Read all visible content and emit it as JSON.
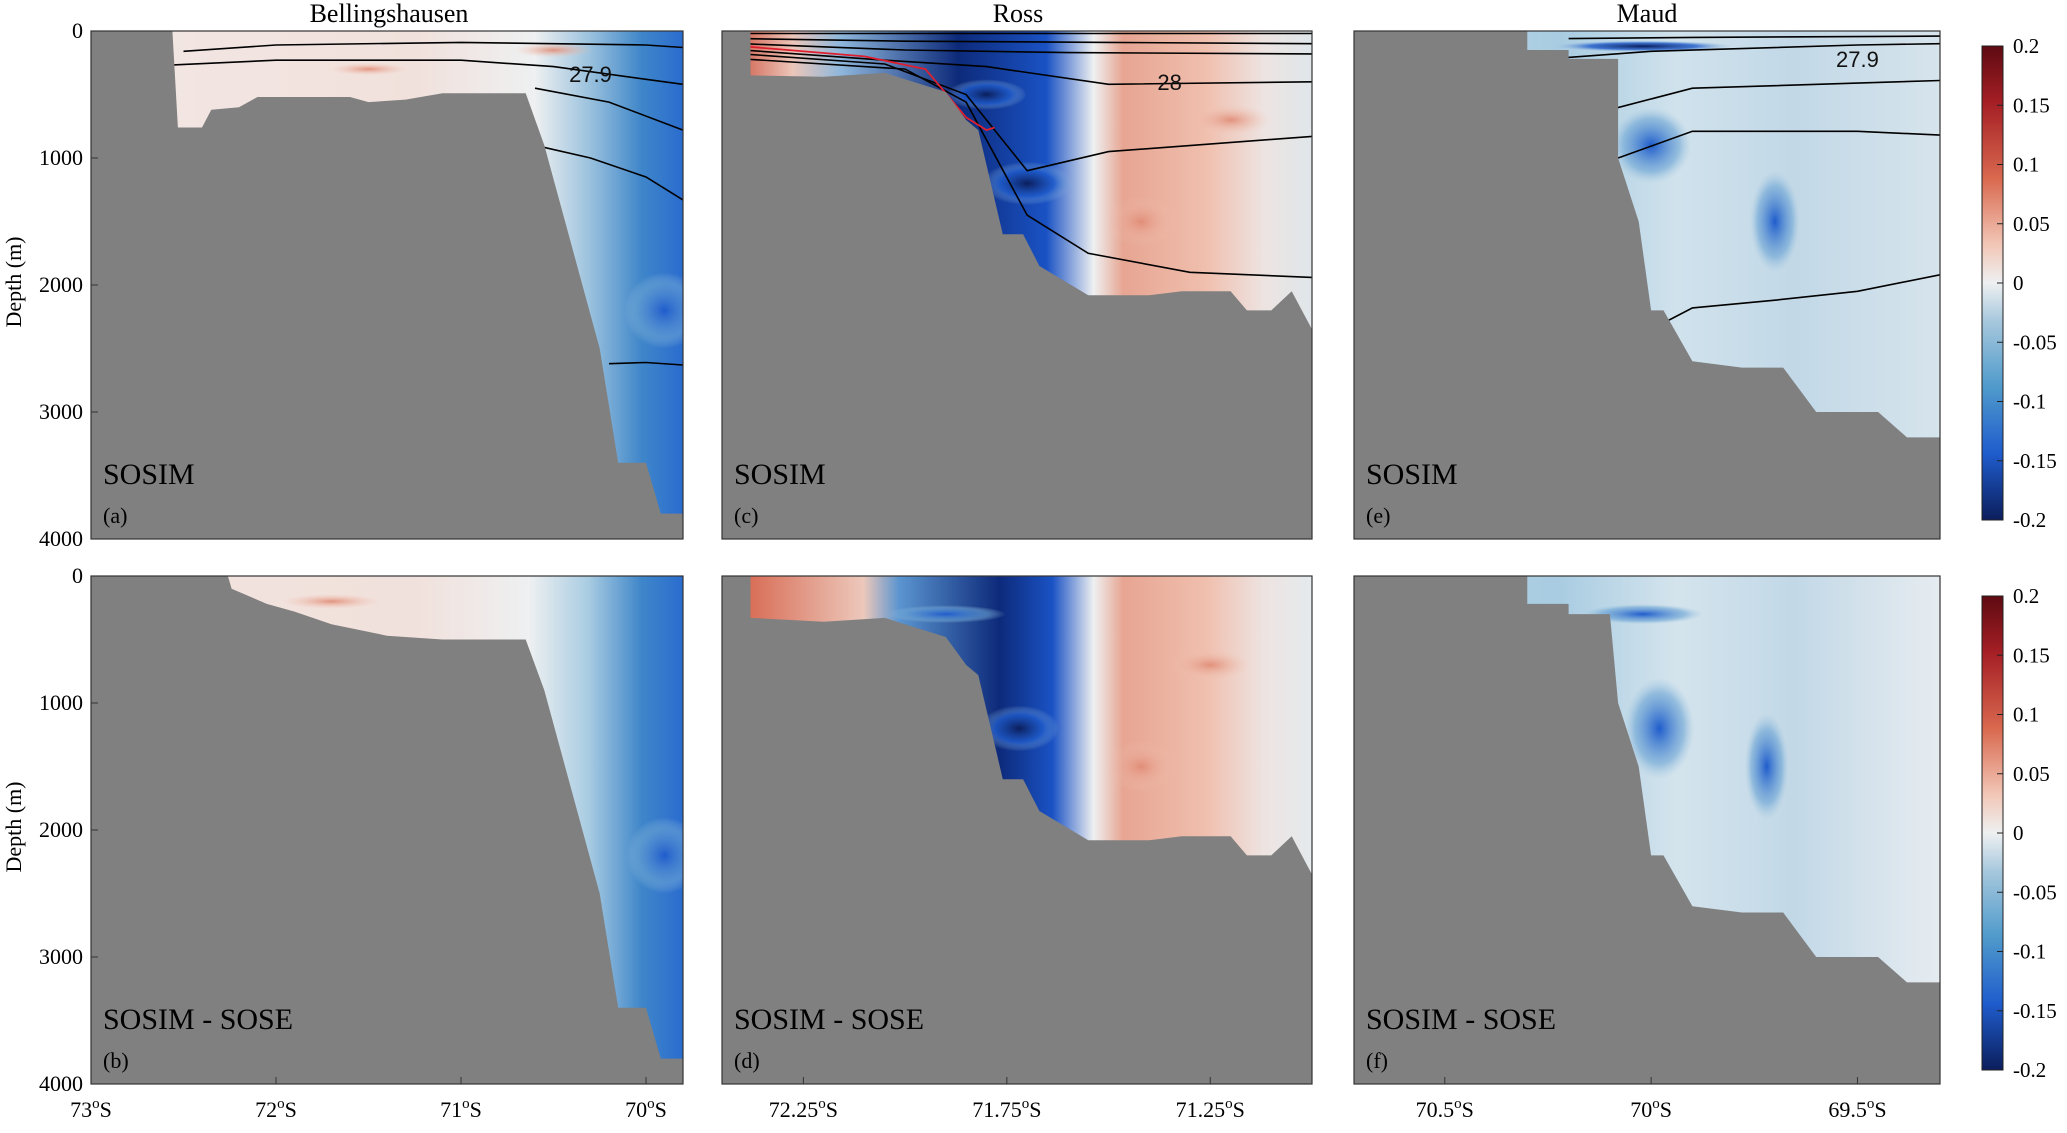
{
  "figure": {
    "columns": [
      "Bellingshausen",
      "Ross",
      "Maud"
    ],
    "y_axis_label": "Depth (m)",
    "y_ticks": [
      "0",
      "1000",
      "2000",
      "3000",
      "4000"
    ],
    "colorbar_ticks": [
      "0.2",
      "0.15",
      "0.1",
      "0.05",
      "0",
      "-0.05",
      "-0.1",
      "-0.15",
      "-0.2"
    ],
    "colors": {
      "land": "#808080",
      "neg_strong": "#0b1e5c",
      "neg_mid": "#1f5ccc",
      "neg_light": "#9dc3de",
      "neutral": "#eef0f1",
      "pos_light": "#f2c7b7",
      "pos_mid": "#d9694f",
      "pos_strong": "#7a0c12",
      "isopycnal": "#000000",
      "red_contour": "#dd1f2f"
    }
  },
  "chart_data": [
    {
      "id": "a",
      "type": "heatmap",
      "section": "Bellingshausen",
      "panel_label": "(a)",
      "model_label": "SOSIM",
      "ylabel": "Depth (m)",
      "ylim": [
        0,
        4000
      ],
      "xlim": [
        73.0,
        69.8
      ],
      "x_ticks": [],
      "x_tick_labels": [],
      "contour_labels": [
        {
          "text": "27.9",
          "lat": 70.3,
          "depth": 340
        }
      ],
      "isopycnals": [
        [
          [
            72.5,
            160
          ],
          [
            72.0,
            110
          ],
          [
            71.0,
            90
          ],
          [
            70.0,
            110
          ],
          [
            69.8,
            130
          ]
        ],
        [
          [
            72.6,
            270
          ],
          [
            72.0,
            230
          ],
          [
            71.0,
            230
          ],
          [
            70.5,
            280
          ],
          [
            70.0,
            380
          ],
          [
            69.8,
            420
          ]
        ],
        [
          [
            70.6,
            450
          ],
          [
            70.2,
            560
          ],
          [
            69.8,
            780
          ]
        ],
        [
          [
            70.6,
            900
          ],
          [
            70.3,
            1000
          ],
          [
            70.0,
            1150
          ],
          [
            69.8,
            1330
          ]
        ],
        [
          [
            70.2,
            2620
          ],
          [
            70.0,
            2610
          ],
          [
            69.8,
            2630
          ]
        ]
      ],
      "bathymetry": [
        [
          73.0,
          0
        ],
        [
          72.56,
          0
        ],
        [
          72.53,
          760
        ],
        [
          72.4,
          760
        ],
        [
          72.35,
          620
        ],
        [
          72.2,
          600
        ],
        [
          72.1,
          520
        ],
        [
          71.6,
          520
        ],
        [
          71.5,
          560
        ],
        [
          71.3,
          540
        ],
        [
          71.1,
          490
        ],
        [
          70.65,
          490
        ],
        [
          70.55,
          900
        ],
        [
          70.25,
          2500
        ],
        [
          70.15,
          3400
        ],
        [
          70.0,
          3400
        ],
        [
          69.92,
          3800
        ],
        [
          69.8,
          3800
        ],
        [
          69.8,
          4000
        ],
        [
          73.0,
          4000
        ]
      ]
    },
    {
      "id": "b",
      "type": "heatmap",
      "section": "Bellingshausen",
      "panel_label": "(b)",
      "model_label": "SOSIM - SOSE",
      "ylabel": "Depth (m)",
      "ylim": [
        0,
        4000
      ],
      "xlim": [
        73.0,
        69.8
      ],
      "x_ticks": [
        73,
        72,
        71,
        70
      ],
      "x_tick_labels": [
        "73",
        "72",
        "71",
        "70"
      ],
      "contour_labels": [],
      "isopycnals": [],
      "bathymetry": [
        [
          73.0,
          0
        ],
        [
          72.26,
          0
        ],
        [
          72.24,
          100
        ],
        [
          72.05,
          220
        ],
        [
          71.9,
          280
        ],
        [
          71.7,
          380
        ],
        [
          71.4,
          470
        ],
        [
          71.1,
          500
        ],
        [
          70.65,
          500
        ],
        [
          70.55,
          900
        ],
        [
          70.25,
          2500
        ],
        [
          70.15,
          3400
        ],
        [
          70.0,
          3400
        ],
        [
          69.92,
          3800
        ],
        [
          69.8,
          3800
        ],
        [
          69.8,
          4000
        ],
        [
          73.0,
          4000
        ]
      ]
    },
    {
      "id": "c",
      "type": "heatmap",
      "section": "Ross",
      "panel_label": "(c)",
      "model_label": "SOSIM",
      "ylabel": "",
      "ylim": [
        0,
        4000
      ],
      "xlim": [
        72.45,
        71.0
      ],
      "x_ticks": [],
      "x_tick_labels": [],
      "contour_labels": [
        {
          "text": "28",
          "lat": 71.35,
          "depth": 400
        }
      ],
      "isopycnals": [
        [
          [
            72.4,
            20
          ],
          [
            72.0,
            20
          ],
          [
            71.0,
            20
          ]
        ],
        [
          [
            72.4,
            60
          ],
          [
            72.0,
            80
          ],
          [
            71.5,
            90
          ],
          [
            71.0,
            100
          ]
        ],
        [
          [
            72.4,
            100
          ],
          [
            72.0,
            150
          ],
          [
            71.6,
            170
          ],
          [
            71.0,
            180
          ]
        ],
        [
          [
            72.4,
            150
          ],
          [
            72.05,
            230
          ],
          [
            71.8,
            280
          ],
          [
            71.5,
            420
          ],
          [
            71.0,
            400
          ]
        ],
        [
          [
            72.4,
            180
          ],
          [
            72.05,
            260
          ],
          [
            71.85,
            500
          ],
          [
            71.7,
            1100
          ],
          [
            71.5,
            950
          ],
          [
            71.0,
            830
          ]
        ],
        [
          [
            72.4,
            220
          ],
          [
            72.0,
            300
          ],
          [
            71.85,
            560
          ],
          [
            71.7,
            1450
          ],
          [
            71.55,
            1750
          ],
          [
            71.3,
            1900
          ],
          [
            71.0,
            1940
          ]
        ]
      ],
      "red_contours": [
        [
          [
            72.4,
            120
          ],
          [
            72.1,
            200
          ],
          [
            71.95,
            300
          ],
          [
            71.85,
            680
          ],
          [
            71.8,
            780
          ],
          [
            71.78,
            760
          ]
        ]
      ],
      "bathymetry": [
        [
          72.45,
          0
        ],
        [
          72.38,
          0
        ],
        [
          72.38,
          350
        ],
        [
          72.2,
          360
        ],
        [
          72.05,
          330
        ],
        [
          71.9,
          480
        ],
        [
          71.85,
          700
        ],
        [
          71.82,
          780
        ],
        [
          71.76,
          1600
        ],
        [
          71.71,
          1600
        ],
        [
          71.67,
          1850
        ],
        [
          71.55,
          2080
        ],
        [
          71.4,
          2080
        ],
        [
          71.32,
          2050
        ],
        [
          71.2,
          2050
        ],
        [
          71.16,
          2200
        ],
        [
          71.1,
          2200
        ],
        [
          71.05,
          2050
        ],
        [
          71.0,
          2350
        ],
        [
          71.0,
          4000
        ],
        [
          72.45,
          4000
        ]
      ]
    },
    {
      "id": "d",
      "type": "heatmap",
      "section": "Ross",
      "panel_label": "(d)",
      "model_label": "SOSIM - SOSE",
      "ylabel": "",
      "ylim": [
        0,
        4000
      ],
      "xlim": [
        72.45,
        71.0
      ],
      "x_ticks": [
        72.25,
        71.75,
        71.25
      ],
      "x_tick_labels": [
        "72.25",
        "71.75",
        "71.25"
      ],
      "contour_labels": [],
      "isopycnals": [],
      "bathymetry": [
        [
          72.45,
          0
        ],
        [
          72.38,
          0
        ],
        [
          72.38,
          330
        ],
        [
          72.2,
          360
        ],
        [
          72.05,
          330
        ],
        [
          71.9,
          480
        ],
        [
          71.85,
          700
        ],
        [
          71.82,
          780
        ],
        [
          71.76,
          1600
        ],
        [
          71.71,
          1600
        ],
        [
          71.67,
          1850
        ],
        [
          71.55,
          2080
        ],
        [
          71.4,
          2080
        ],
        [
          71.32,
          2050
        ],
        [
          71.2,
          2050
        ],
        [
          71.16,
          2200
        ],
        [
          71.1,
          2200
        ],
        [
          71.05,
          2050
        ],
        [
          71.0,
          2350
        ],
        [
          71.0,
          4000
        ],
        [
          72.45,
          4000
        ]
      ]
    },
    {
      "id": "e",
      "type": "heatmap",
      "section": "Maud",
      "panel_label": "(e)",
      "model_label": "SOSIM",
      "ylabel": "",
      "ylim": [
        0,
        4000
      ],
      "xlim": [
        70.72,
        69.3
      ],
      "x_ticks": [],
      "x_tick_labels": [],
      "contour_labels": [
        {
          "text": "27.9",
          "lat": 69.5,
          "depth": 220
        }
      ],
      "isopycnals": [
        [
          [
            70.2,
            60
          ],
          [
            69.9,
            50
          ],
          [
            69.3,
            40
          ]
        ],
        [
          [
            70.25,
            220
          ],
          [
            70.0,
            160
          ],
          [
            69.5,
            110
          ],
          [
            69.3,
            100
          ]
        ],
        [
          [
            70.1,
            620
          ],
          [
            69.9,
            450
          ],
          [
            69.5,
            410
          ],
          [
            69.3,
            390
          ]
        ],
        [
          [
            70.08,
            1000
          ],
          [
            69.9,
            790
          ],
          [
            69.5,
            790
          ],
          [
            69.3,
            820
          ]
        ],
        [
          [
            70.0,
            2350
          ],
          [
            69.9,
            2180
          ],
          [
            69.7,
            2120
          ],
          [
            69.5,
            2050
          ],
          [
            69.3,
            1920
          ]
        ]
      ],
      "bathymetry": [
        [
          70.72,
          0
        ],
        [
          70.3,
          0
        ],
        [
          70.3,
          150
        ],
        [
          70.2,
          150
        ],
        [
          70.2,
          220
        ],
        [
          70.08,
          220
        ],
        [
          70.08,
          1000
        ],
        [
          70.03,
          1500
        ],
        [
          70.0,
          2200
        ],
        [
          69.97,
          2200
        ],
        [
          69.9,
          2600
        ],
        [
          69.78,
          2650
        ],
        [
          69.68,
          2650
        ],
        [
          69.6,
          3000
        ],
        [
          69.45,
          3000
        ],
        [
          69.38,
          3200
        ],
        [
          69.3,
          3200
        ],
        [
          69.3,
          4000
        ],
        [
          70.72,
          4000
        ]
      ]
    },
    {
      "id": "f",
      "type": "heatmap",
      "section": "Maud",
      "panel_label": "(f)",
      "model_label": "SOSIM - SOSE",
      "ylabel": "",
      "ylim": [
        0,
        4000
      ],
      "xlim": [
        70.72,
        69.3
      ],
      "x_ticks": [
        70.5,
        70.0,
        69.5
      ],
      "x_tick_labels": [
        "70.5",
        "70",
        "69.5"
      ],
      "contour_labels": [],
      "isopycnals": [],
      "bathymetry": [
        [
          70.72,
          0
        ],
        [
          70.3,
          0
        ],
        [
          70.3,
          220
        ],
        [
          70.2,
          220
        ],
        [
          70.2,
          300
        ],
        [
          70.1,
          300
        ],
        [
          70.08,
          1000
        ],
        [
          70.03,
          1500
        ],
        [
          70.0,
          2200
        ],
        [
          69.97,
          2200
        ],
        [
          69.9,
          2600
        ],
        [
          69.78,
          2650
        ],
        [
          69.68,
          2650
        ],
        [
          69.6,
          3000
        ],
        [
          69.45,
          3000
        ],
        [
          69.38,
          3200
        ],
        [
          69.3,
          3200
        ],
        [
          69.3,
          4000
        ],
        [
          70.72,
          4000
        ]
      ]
    }
  ]
}
